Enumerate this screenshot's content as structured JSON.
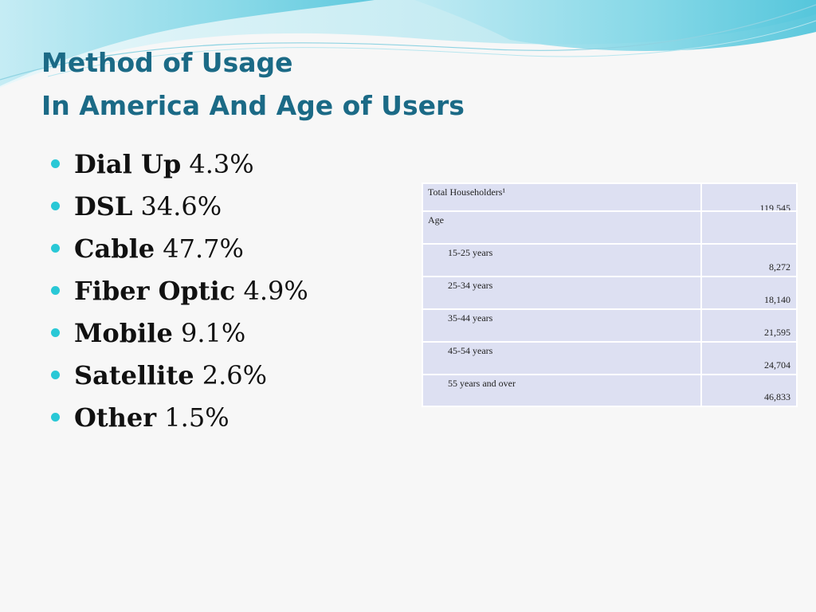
{
  "slide": {
    "title_line1": "Method of Usage",
    "title_line2": "In America And Age of Users",
    "bullets": [
      {
        "label": "Dial Up",
        "value": "4.3%"
      },
      {
        "label": "DSL",
        "value": "34.6%"
      },
      {
        "label": "Cable",
        "value": "47.7%"
      },
      {
        "label": "Fiber Optic",
        "value": "4.9%"
      },
      {
        "label": "Mobile",
        "value": "9.1%"
      },
      {
        "label": "Satellite",
        "value": "2.6%"
      },
      {
        "label": "Other",
        "value": "1.5%"
      }
    ]
  },
  "table": {
    "rows": [
      {
        "label": "Total Householders¹",
        "value": "119,545"
      },
      {
        "label": "Age",
        "value": ""
      },
      {
        "label": "15-25 years",
        "value": "8,272"
      },
      {
        "label": "25-34 years",
        "value": "18,140"
      },
      {
        "label": "35-44 years",
        "value": "21,595"
      },
      {
        "label": "45-54 years",
        "value": "24,704"
      },
      {
        "label": "55 years and over",
        "value": "46,833"
      }
    ]
  },
  "colors": {
    "title": "#1b6a86",
    "bullet": "#29c8d6",
    "table_cell": "#dde0f2",
    "wave_light": "#bfe8f0",
    "wave_teal": "#5cc6dc"
  }
}
